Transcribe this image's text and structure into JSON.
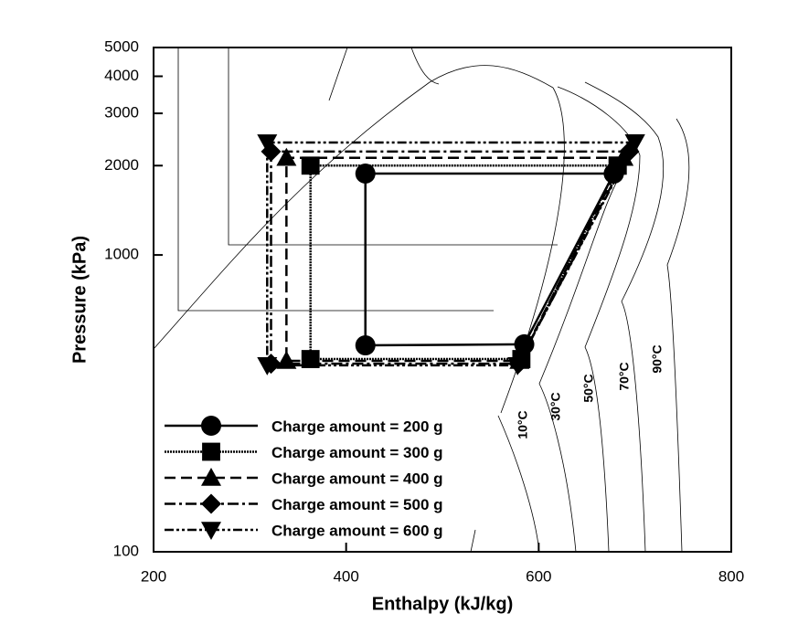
{
  "chart_data": {
    "type": "line",
    "xlabel": "Enthalpy (kJ/kg)",
    "ylabel": "Pressure (kPa)",
    "xlim": [
      200,
      800
    ],
    "xticks": [
      200,
      400,
      600,
      800
    ],
    "ylim": [
      100,
      5000
    ],
    "yticks": [
      100,
      1000,
      2000,
      3000,
      4000,
      5000
    ],
    "ylog": true,
    "legend": "lower left",
    "annotations": [
      "10°C",
      "30°C",
      "50°C",
      "70°C",
      "90°C"
    ],
    "series": [
      {
        "name": "Charge amount = 200 g",
        "color": "#000000",
        "marker": "circle",
        "dash": "none",
        "x": [
          678,
          420,
          420,
          585,
          678
        ],
        "values": [
          1880,
          1880,
          496,
          500,
          1880
        ]
      },
      {
        "name": "Charge amount = 300 g",
        "color": "#000000",
        "marker": "square",
        "dash": "2,1",
        "x": [
          682,
          363,
          363,
          582,
          682
        ],
        "values": [
          2000,
          2000,
          446,
          446,
          2000
        ]
      },
      {
        "name": "Charge amount = 400 g",
        "color": "#000000",
        "marker": "triangle",
        "dash": "12,6",
        "x": [
          688,
          338,
          338,
          580,
          688
        ],
        "values": [
          2125,
          2125,
          440,
          440,
          2125
        ]
      },
      {
        "name": "Charge amount = 500 g",
        "color": "#000000",
        "marker": "diamond",
        "dash": "12,4,3,4",
        "x": [
          694,
          322,
          322,
          579,
          694
        ],
        "values": [
          2230,
          2230,
          430,
          430,
          2230
        ]
      },
      {
        "name": "Charge amount = 600 g",
        "color": "#000000",
        "marker": "triangle-down",
        "dash": "10,3,3,3,3,3",
        "x": [
          700,
          318,
          318,
          578,
          700
        ],
        "values": [
          2393,
          2393,
          425,
          425,
          2393
        ]
      }
    ]
  }
}
